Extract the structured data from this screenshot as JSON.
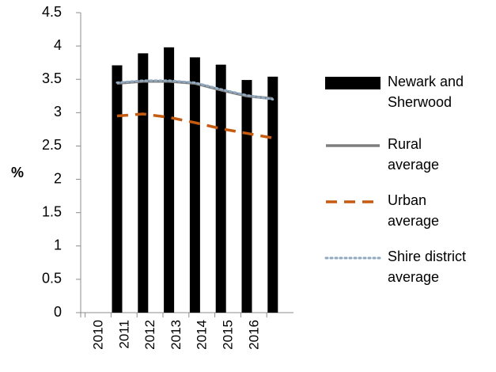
{
  "chart_data": {
    "type": "bar",
    "title": "",
    "xlabel": "",
    "ylabel": "%",
    "ylim": [
      0,
      4.5
    ],
    "yticks": [
      "0",
      "0.5",
      "1",
      "1.5",
      "2",
      "2.5",
      "3",
      "3.5",
      "4",
      "4.5"
    ],
    "categories": [
      "2010",
      "2011",
      "2012",
      "2013",
      "2014",
      "2015",
      "2016"
    ],
    "grid": false,
    "legend_position": "right",
    "series": [
      {
        "name": "Newark and Sherwood",
        "legend_lines": [
          "Newark and",
          "Sherwood"
        ],
        "type": "bar",
        "color": "#000000",
        "values": [
          3.71,
          3.89,
          3.98,
          3.83,
          3.72,
          3.49,
          3.54
        ]
      },
      {
        "name": "Rural average",
        "legend_lines": [
          "Rural",
          "average"
        ],
        "type": "line",
        "style": "solid",
        "color": "#7f7f7f",
        "values": [
          3.44,
          3.47,
          3.47,
          3.44,
          3.34,
          3.25,
          3.21
        ]
      },
      {
        "name": "Urban average",
        "legend_lines": [
          "Urban",
          "average"
        ],
        "type": "line",
        "style": "dashed",
        "color": "#c55a11",
        "values": [
          2.95,
          2.98,
          2.93,
          2.85,
          2.76,
          2.69,
          2.62
        ]
      },
      {
        "name": "Shire district average",
        "legend_lines": [
          "Shire district",
          "average"
        ],
        "type": "line",
        "style": "dotted",
        "color": "#8ea9c1",
        "values": [
          3.45,
          3.48,
          3.48,
          3.45,
          3.35,
          3.26,
          3.2
        ]
      }
    ]
  }
}
